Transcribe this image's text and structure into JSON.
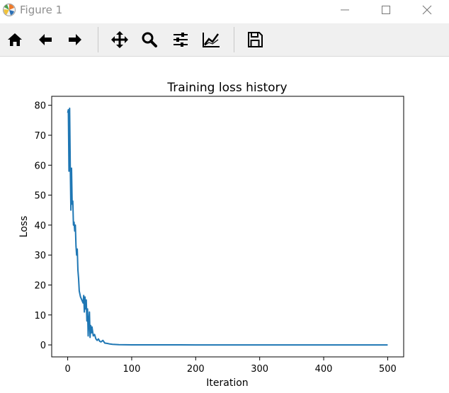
{
  "window": {
    "title": "Figure 1",
    "icons": {
      "app": "matplotlib-logo-icon",
      "minimize": "minimize-icon",
      "maximize": "maximize-icon",
      "close": "close-icon"
    }
  },
  "toolbar": {
    "buttons": [
      {
        "name": "home",
        "icon": "home-icon"
      },
      {
        "name": "back",
        "icon": "arrow-left-icon"
      },
      {
        "name": "forward",
        "icon": "arrow-right-icon"
      },
      {
        "name": "pan",
        "icon": "move-icon"
      },
      {
        "name": "zoom",
        "icon": "magnifier-icon"
      },
      {
        "name": "subplots",
        "icon": "sliders-icon"
      },
      {
        "name": "edit-axes",
        "icon": "chart-line-icon"
      },
      {
        "name": "save",
        "icon": "floppy-disk-icon"
      }
    ]
  },
  "colors": {
    "line": "#1f77b4",
    "toolbar_bg": "#f0f0f0",
    "title_text": "#8e8e8e"
  },
  "chart_data": {
    "type": "line",
    "title": "Training loss history",
    "xlabel": "Iteration",
    "ylabel": "Loss",
    "xlim": [
      -25,
      525
    ],
    "ylim": [
      -4,
      83
    ],
    "xticks": [
      0,
      100,
      200,
      300,
      400,
      500
    ],
    "yticks": [
      0,
      10,
      20,
      30,
      40,
      50,
      60,
      70,
      80
    ],
    "grid": false,
    "series": [
      {
        "x": [
          0,
          1,
          2,
          3,
          4,
          5,
          6,
          7,
          8,
          9,
          10,
          11,
          12,
          13,
          14,
          15,
          16,
          17,
          18,
          20,
          22,
          24,
          25,
          26,
          27,
          28,
          29,
          30,
          31,
          32,
          33,
          34,
          35,
          36,
          37,
          38,
          40,
          42,
          44,
          46,
          48,
          50,
          52,
          55,
          58,
          62,
          66,
          70,
          80,
          90,
          100,
          120,
          150,
          200,
          250,
          300,
          350,
          400,
          450,
          500
        ],
        "y": [
          77.5,
          78.5,
          58,
          79,
          60,
          45,
          59,
          47,
          48,
          40,
          41,
          38,
          40,
          33,
          30,
          32,
          25,
          22,
          18,
          16,
          15,
          14,
          16.5,
          11,
          16,
          12,
          15,
          8,
          12,
          3,
          8,
          11,
          2.5,
          6.5,
          4,
          6,
          3,
          3.5,
          2,
          1.5,
          2,
          1.2,
          1,
          1.5,
          0.6,
          0.5,
          0.3,
          0.2,
          0.1,
          0.05,
          0.03,
          0.02,
          0.01,
          0.0,
          0.0,
          0.0,
          0.0,
          0.0,
          0.0,
          0.0
        ]
      }
    ]
  }
}
